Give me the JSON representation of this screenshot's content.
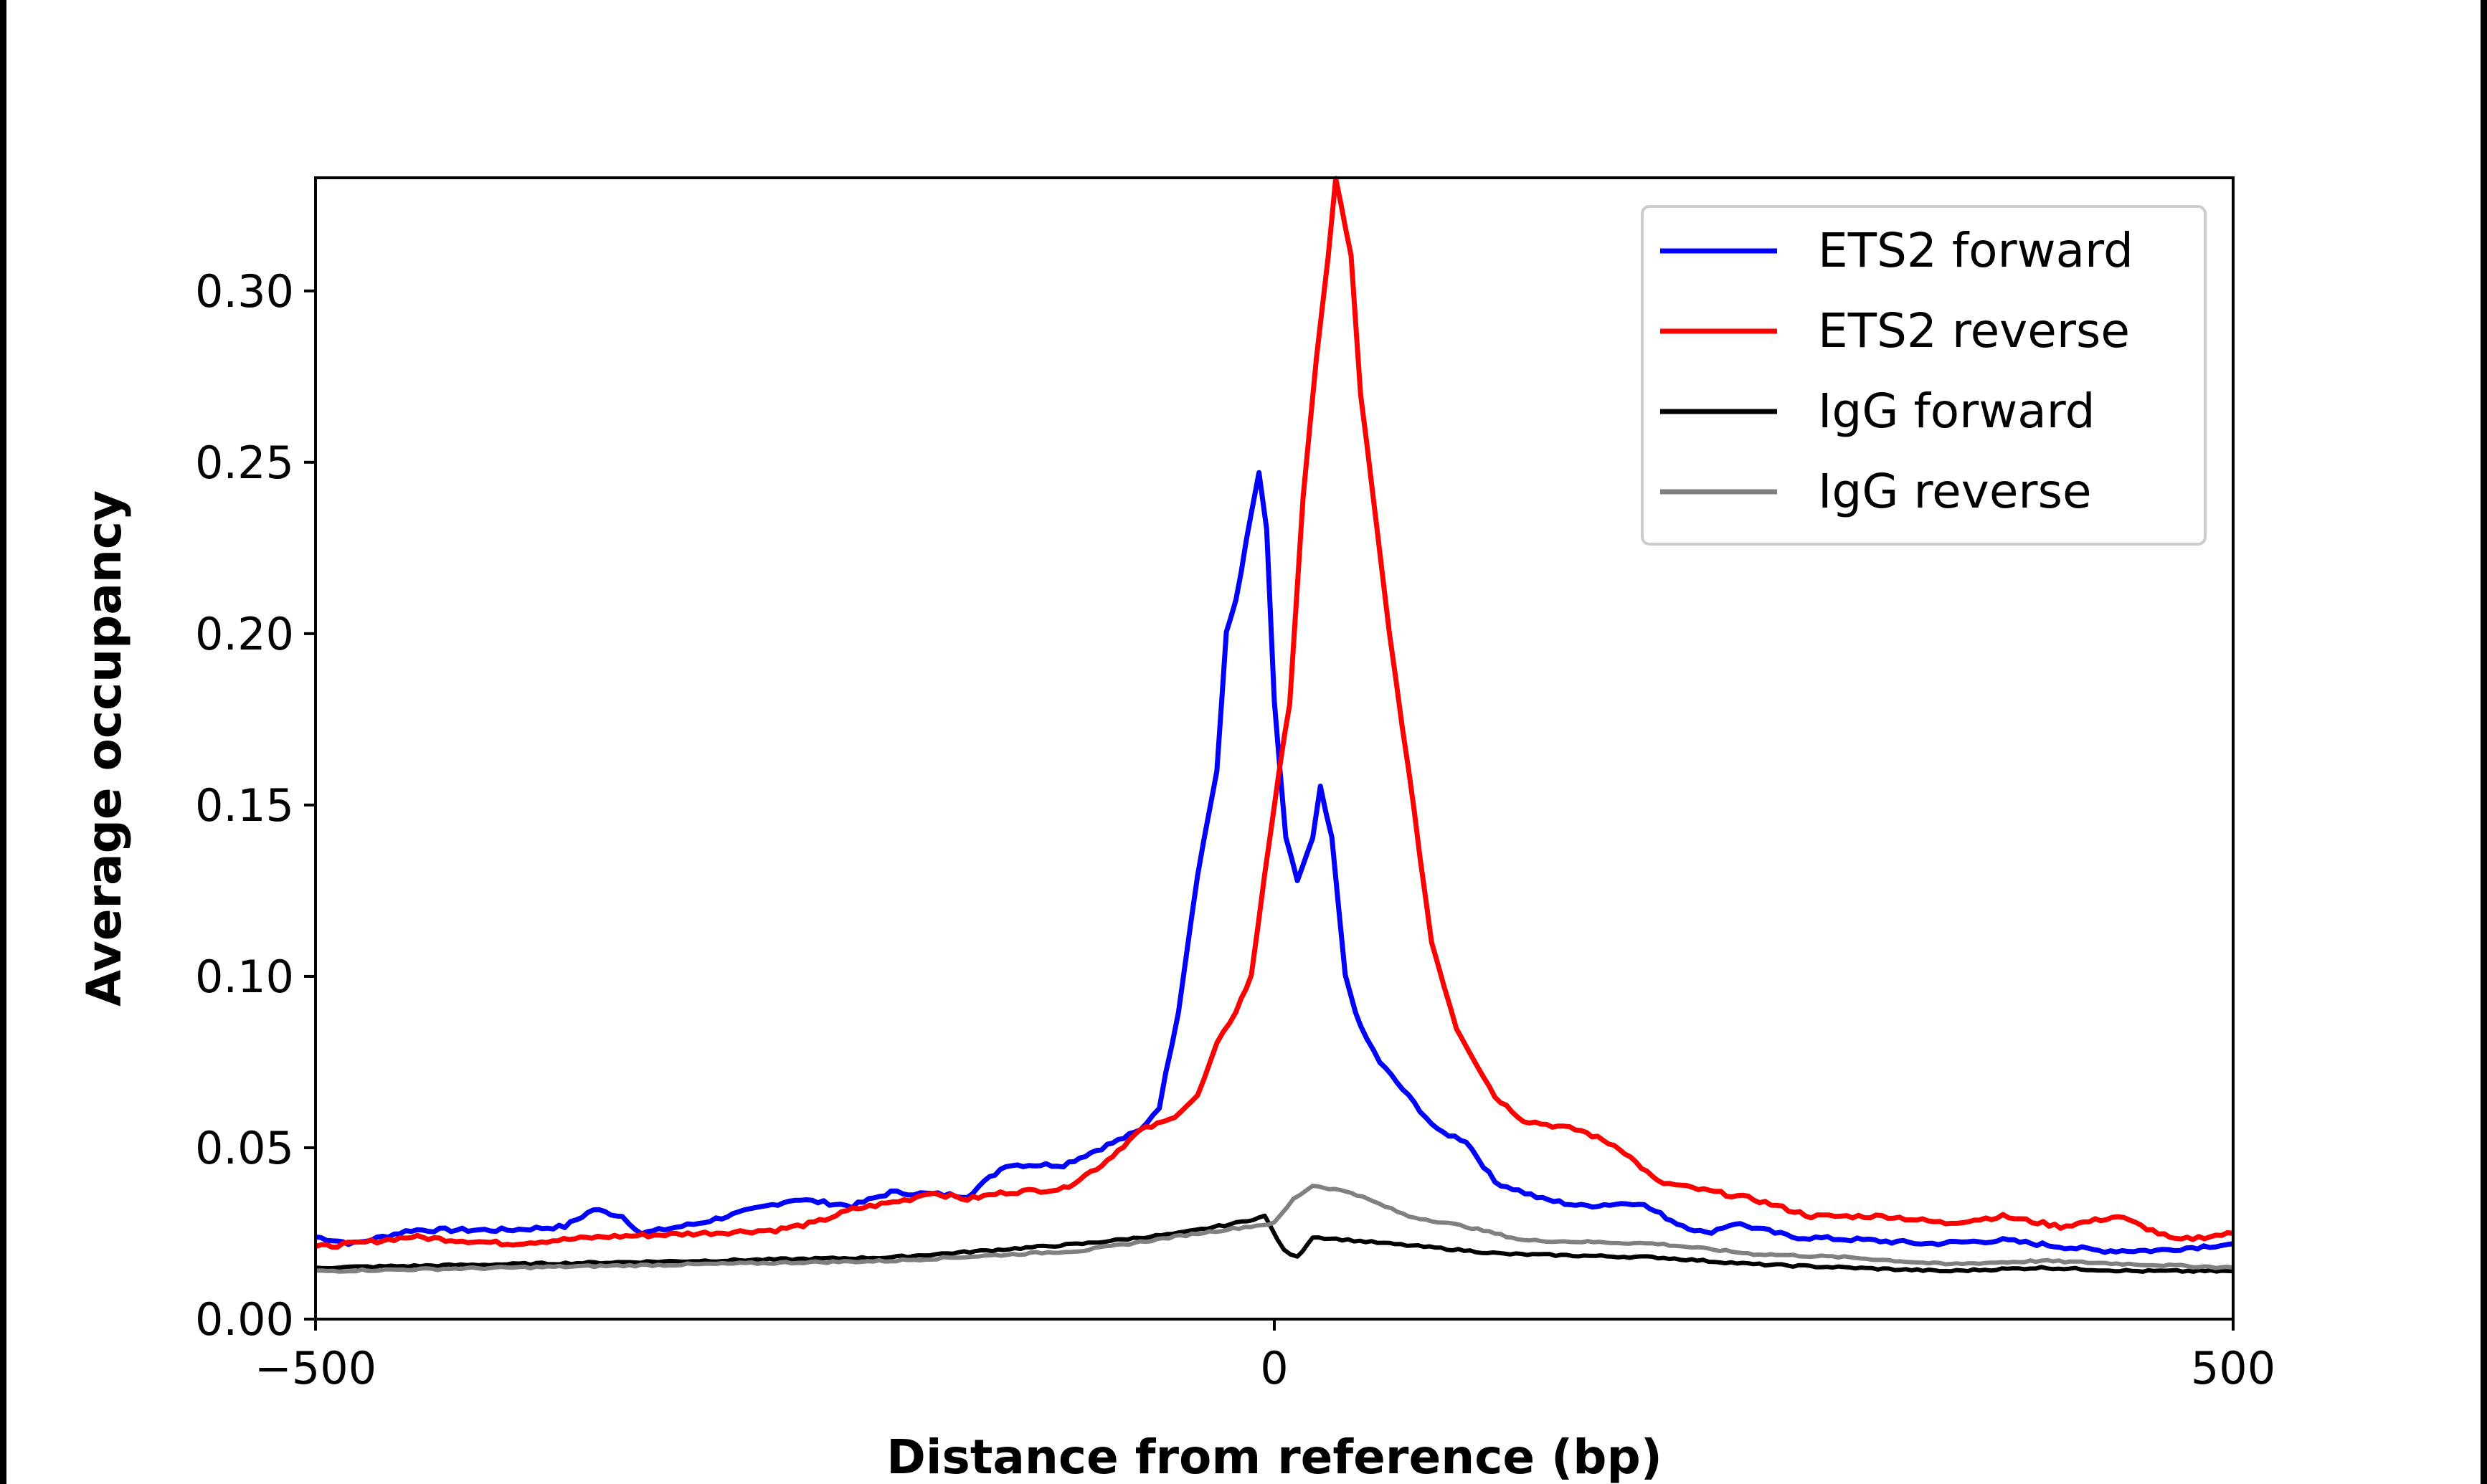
{
  "chart_data": {
    "type": "line",
    "title": "",
    "xlabel": "Distance from reference (bp)",
    "ylabel": "Average occupancy",
    "xlim": [
      -500,
      500
    ],
    "ylim": [
      0,
      0.333
    ],
    "xticks": [
      -500,
      0,
      500
    ],
    "xtick_labels": [
      "−500",
      "0",
      "500"
    ],
    "yticks": [
      0,
      0.05,
      0.1,
      0.15,
      0.2,
      0.25,
      0.3
    ],
    "ytick_labels": [
      "0.00",
      "0.05",
      "0.10",
      "0.15",
      "0.20",
      "0.25",
      "0.30"
    ],
    "grid": false,
    "legend_position": "top-right",
    "series": [
      {
        "name": "ETS2 forward",
        "color": "#0000ff",
        "x": [
          -500,
          -480,
          -450,
          -400,
          -370,
          -355,
          -340,
          -330,
          -300,
          -250,
          -220,
          -200,
          -160,
          -140,
          -110,
          -90,
          -70,
          -60,
          -50,
          -40,
          -30,
          -25,
          -20,
          -12,
          -8,
          -4,
          0,
          6,
          12,
          20,
          24,
          30,
          37,
          45,
          55,
          70,
          85,
          100,
          115,
          140,
          160,
          190,
          210,
          225,
          240,
          270,
          310,
          340,
          380,
          430,
          460,
          500
        ],
        "y": [
          0.024,
          0.022,
          0.026,
          0.026,
          0.027,
          0.032,
          0.03,
          0.025,
          0.028,
          0.035,
          0.033,
          0.037,
          0.036,
          0.045,
          0.045,
          0.05,
          0.055,
          0.062,
          0.09,
          0.13,
          0.16,
          0.2,
          0.21,
          0.235,
          0.247,
          0.23,
          0.18,
          0.14,
          0.128,
          0.14,
          0.155,
          0.14,
          0.1,
          0.085,
          0.075,
          0.065,
          0.055,
          0.052,
          0.04,
          0.035,
          0.033,
          0.034,
          0.028,
          0.025,
          0.028,
          0.024,
          0.023,
          0.022,
          0.023,
          0.02,
          0.02,
          0.022
        ]
      },
      {
        "name": "ETS2 reverse",
        "color": "#ff0000",
        "x": [
          -500,
          -480,
          -450,
          -400,
          -350,
          -300,
          -260,
          -240,
          -220,
          -190,
          -180,
          -160,
          -140,
          -110,
          -90,
          -70,
          -55,
          -40,
          -30,
          -20,
          -12,
          -5,
          0,
          8,
          15,
          22,
          28,
          32,
          40,
          45,
          60,
          70,
          82,
          95,
          115,
          130,
          160,
          180,
          200,
          230,
          250,
          280,
          320,
          350,
          380,
          410,
          440,
          470,
          500
        ],
        "y": [
          0.021,
          0.022,
          0.024,
          0.022,
          0.024,
          0.025,
          0.026,
          0.028,
          0.032,
          0.035,
          0.037,
          0.035,
          0.037,
          0.038,
          0.045,
          0.055,
          0.058,
          0.065,
          0.08,
          0.09,
          0.1,
          0.13,
          0.15,
          0.18,
          0.24,
          0.28,
          0.31,
          0.333,
          0.31,
          0.27,
          0.2,
          0.16,
          0.11,
          0.085,
          0.065,
          0.058,
          0.055,
          0.05,
          0.04,
          0.037,
          0.035,
          0.03,
          0.03,
          0.028,
          0.03,
          0.027,
          0.03,
          0.023,
          0.025
        ]
      },
      {
        "name": "IgG forward",
        "color": "#000000",
        "x": [
          -500,
          -400,
          -300,
          -200,
          -150,
          -100,
          -50,
          -20,
          -5,
          5,
          12,
          20,
          60,
          120,
          200,
          250,
          300,
          350,
          400,
          450,
          500
        ],
        "y": [
          0.015,
          0.016,
          0.017,
          0.018,
          0.02,
          0.022,
          0.025,
          0.028,
          0.03,
          0.02,
          0.018,
          0.024,
          0.022,
          0.019,
          0.018,
          0.016,
          0.015,
          0.014,
          0.015,
          0.014,
          0.014
        ]
      },
      {
        "name": "IgG reverse",
        "color": "#808080",
        "x": [
          -500,
          -400,
          -300,
          -200,
          -100,
          -40,
          0,
          10,
          20,
          40,
          70,
          100,
          130,
          200,
          250,
          300,
          350,
          400,
          500
        ],
        "y": [
          0.014,
          0.015,
          0.016,
          0.017,
          0.02,
          0.025,
          0.028,
          0.035,
          0.039,
          0.037,
          0.03,
          0.027,
          0.023,
          0.022,
          0.019,
          0.018,
          0.016,
          0.017,
          0.015
        ]
      }
    ]
  }
}
